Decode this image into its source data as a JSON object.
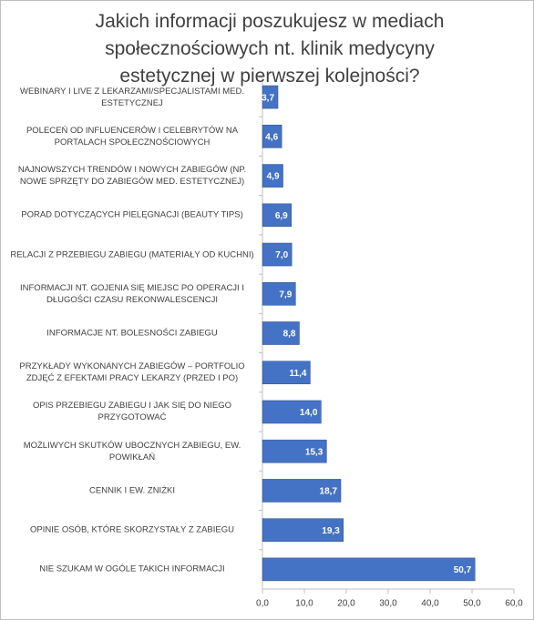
{
  "chart_data": {
    "type": "bar",
    "orientation": "horizontal",
    "title": "Jakich informacji poszukujesz w mediach społecznościowych nt. klinik medycyny estetycznej w pierwszej kolejności?",
    "categories": [
      "WEBINARY I LIVE Z LEKARZAMI/SPECJALISTAMI MED. ESTETYCZNEJ",
      "POLECEŃ OD INFLUENCERÓW I CELEBRYTÓW NA PORTALACH SPOŁECZNOŚCIOWYCH",
      "NAJNOWSZYCH TRENDÓW I NOWYCH ZABIEGÓW (NP. NOWE SPRZĘTY DO ZABIEGÓW MED. ESTETYCZNEJ)",
      "PORAD DOTYCZĄCYCH PIELĘGNACJI (BEAUTY TIPS)",
      "RELACJI Z PRZEBIEGU ZABIEGU (MATERIAŁY OD KUCHNI)",
      "INFORMACJI NT. GOJENIA SIĘ MIEJSC PO OPERACJI I DŁUGOŚCI CZASU REKONWALESCENCJI",
      "INFORMACJE NT. BOLESNOŚCI ZABIEGU",
      "PRZYKŁADY WYKONANYCH ZABIEGÓW – PORTFOLIO ZDJĘĆ Z EFEKTAMI PRACY LEKARZY (PRZED I PO)",
      "OPIS PRZEBIEGU ZABIEGU I JAK SIĘ DO NIEGO PRZYGOTOWAĆ",
      "MOŻLIWYCH SKUTKÓW UBOCZNYCH ZABIEGU, EW. POWIKŁAŃ",
      "CENNIK I EW. ZNIŻKI",
      "OPINIE OSÓB, KTÓRE SKORZYSTAŁY Z ZABIEGU",
      "NIE SZUKAM W OGÓLE TAKICH INFORMACJI"
    ],
    "values": [
      3.7,
      4.6,
      4.9,
      6.9,
      7.0,
      7.9,
      8.8,
      11.4,
      14.0,
      15.3,
      18.7,
      19.3,
      50.7
    ],
    "value_labels": [
      "3,7",
      "4,6",
      "4,9",
      "6,9",
      "7,0",
      "7,9",
      "8,8",
      "11,4",
      "14,0",
      "15,3",
      "18,7",
      "19,3",
      "50,7"
    ],
    "color": "#4472c4",
    "xlim": [
      0,
      60
    ],
    "xticks": [
      {
        "value": 0,
        "label": "0,0"
      },
      {
        "value": 10,
        "label": "10,0"
      },
      {
        "value": 20,
        "label": "20,0"
      },
      {
        "value": 30,
        "label": "30,0"
      },
      {
        "value": 40,
        "label": "40,0"
      },
      {
        "value": 50,
        "label": "50,0"
      },
      {
        "value": 60,
        "label": "60,0"
      }
    ],
    "grid": false
  }
}
